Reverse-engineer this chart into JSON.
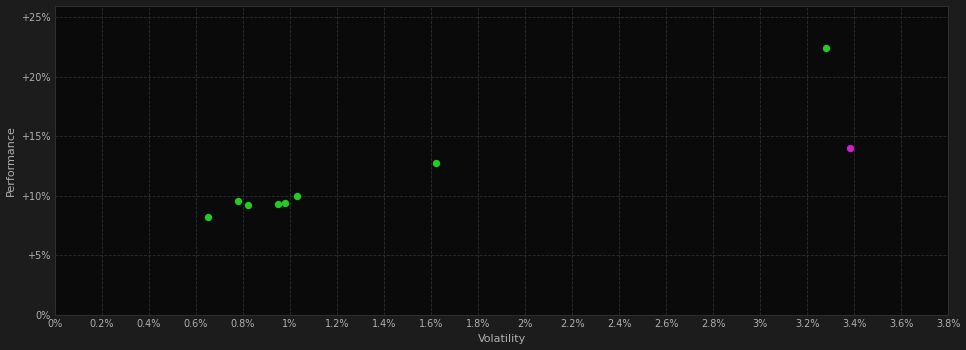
{
  "background_color": "#1c1c1c",
  "plot_bg_color": "#0a0a0a",
  "grid_color": "#2e2e2e",
  "text_color": "#b0b0b0",
  "xlabel": "Volatility",
  "ylabel": "Performance",
  "xlim": [
    0.0,
    0.038
  ],
  "ylim": [
    0.0,
    0.26
  ],
  "xtick_step": 0.002,
  "green_points": [
    [
      0.0065,
      0.082
    ],
    [
      0.0078,
      0.096
    ],
    [
      0.0082,
      0.092
    ],
    [
      0.0095,
      0.093
    ],
    [
      0.0098,
      0.094
    ],
    [
      0.0103,
      0.1
    ],
    [
      0.0162,
      0.128
    ],
    [
      0.0328,
      0.224
    ]
  ],
  "magenta_points": [
    [
      0.0338,
      0.14
    ]
  ],
  "green_color": "#22cc22",
  "magenta_color": "#cc22cc",
  "marker_size": 28,
  "ytick_labels": [
    "0%",
    "+5%",
    "+10%",
    "+15%",
    "+20%",
    "+25%"
  ],
  "ytick_values": [
    0.0,
    0.05,
    0.1,
    0.15,
    0.2,
    0.25
  ],
  "xtick_values": [
    0.0,
    0.002,
    0.004,
    0.006,
    0.008,
    0.01,
    0.012,
    0.014,
    0.016,
    0.018,
    0.02,
    0.022,
    0.024,
    0.026,
    0.028,
    0.03,
    0.032,
    0.034,
    0.036,
    0.038
  ],
  "xtick_labels": [
    "0%",
    "0.2%",
    "0.4%",
    "0.6%",
    "0.8%",
    "1%",
    "1.2%",
    "1.4%",
    "1.6%",
    "1.8%",
    "2%",
    "2.2%",
    "2.4%",
    "2.6%",
    "2.8%",
    "3%",
    "3.2%",
    "3.4%",
    "3.6%",
    "3.8%"
  ]
}
